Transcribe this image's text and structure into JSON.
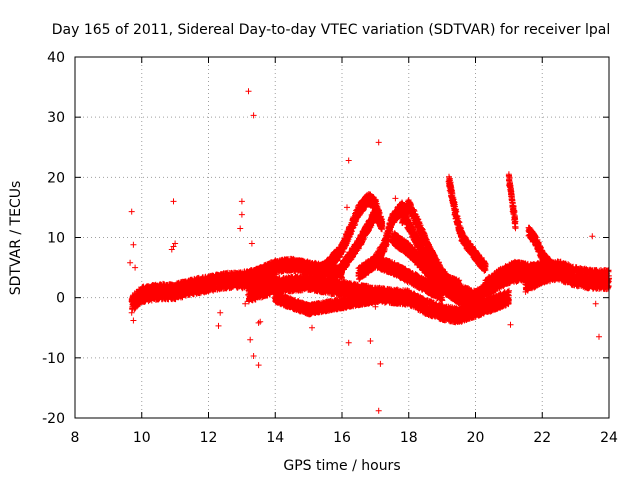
{
  "chart_data": {
    "type": "scatter",
    "title": "Day 165 of 2011, Sidereal Day-to-day VTEC variation (SDTVAR) for receiver lpal",
    "xlabel": "GPS time / hours",
    "ylabel": "SDTVAR / TECUs",
    "xlim": [
      8,
      24
    ],
    "ylim": [
      -20,
      40
    ],
    "xticks": [
      "8",
      "10",
      "12",
      "14",
      "16",
      "18",
      "20",
      "22",
      "24"
    ],
    "yticks": [
      "-20",
      "-10",
      "0",
      "10",
      "20",
      "30",
      "40"
    ],
    "grid": true,
    "marker": "+",
    "color": "#ff0000",
    "legend": "none",
    "bands": [
      {
        "x": [
          9.7,
          10.0,
          10.5,
          11.0,
          11.5,
          12.0,
          12.5,
          13.0,
          13.5,
          14.0
        ],
        "y": [
          -1.0,
          0.5,
          1.0,
          1.0,
          1.8,
          2.3,
          2.8,
          3.0,
          3.5,
          4.0
        ],
        "hw": 1.3
      },
      {
        "x": [
          13.0,
          13.5,
          14.0,
          14.5,
          15.0,
          15.5,
          16.0
        ],
        "y": [
          2.5,
          4.0,
          5.2,
          5.5,
          5.0,
          4.5,
          4.2
        ],
        "hw": 1.0
      },
      {
        "x": [
          13.2,
          14.0,
          15.0,
          16.0,
          17.0,
          18.0,
          18.5,
          19.0,
          19.5,
          20.0,
          20.5,
          21.0
        ],
        "y": [
          0.5,
          2.0,
          2.5,
          1.5,
          0.5,
          0.0,
          -1.5,
          -2.5,
          -3.0,
          -2.0,
          -1.0,
          0.0
        ],
        "hw": 1.2
      },
      {
        "x": [
          14.0,
          15.0,
          16.0,
          16.5,
          17.0
        ],
        "y": [
          0.0,
          -2.0,
          -1.0,
          -0.5,
          0.0
        ],
        "hw": 0.8
      },
      {
        "x": [
          15.2,
          15.5,
          16.0,
          16.3,
          16.5,
          16.8,
          17.0,
          17.2
        ],
        "y": [
          4.0,
          5.0,
          8.0,
          12.0,
          14.5,
          16.5,
          15.5,
          12.0
        ],
        "hw": 0.9
      },
      {
        "x": [
          16.0,
          16.5,
          16.8,
          17.0,
          17.2
        ],
        "y": [
          5.0,
          9.0,
          12.0,
          14.0,
          12.0
        ],
        "hw": 0.8
      },
      {
        "x": [
          17.0,
          17.3,
          17.5,
          17.8,
          18.0,
          18.5,
          19.0,
          19.5
        ],
        "y": [
          6.0,
          9.0,
          13.0,
          15.0,
          12.0,
          7.0,
          3.0,
          2.0
        ],
        "hw": 0.9
      },
      {
        "x": [
          17.5,
          18.0,
          18.5,
          19.0,
          19.5,
          20.0
        ],
        "y": [
          10.0,
          8.0,
          5.0,
          2.0,
          0.0,
          -1.5
        ],
        "hw": 1.0
      },
      {
        "x": [
          17.8,
          18.0,
          18.3,
          18.6,
          19.0,
          19.3
        ],
        "y": [
          13.0,
          15.5,
          12.0,
          8.0,
          4.0,
          2.0
        ],
        "hw": 0.8
      },
      {
        "x": [
          16.5,
          17.0,
          17.5,
          18.0,
          18.5,
          19.0
        ],
        "y": [
          4.0,
          6.0,
          5.0,
          3.5,
          2.0,
          0.5
        ],
        "hw": 1.0
      },
      {
        "x": [
          19.2,
          19.3,
          19.4,
          19.6,
          20.0,
          20.3
        ],
        "y": [
          19.5,
          17.0,
          14.0,
          10.0,
          7.0,
          5.0
        ],
        "hw": 0.8
      },
      {
        "x": [
          19.5,
          20.0,
          20.5,
          21.0,
          21.5
        ],
        "y": [
          1.0,
          0.0,
          2.0,
          3.5,
          4.0
        ],
        "hw": 1.1
      },
      {
        "x": [
          20.3,
          20.8,
          21.2,
          21.7,
          22.0
        ],
        "y": [
          2.0,
          4.0,
          5.0,
          4.5,
          5.0
        ],
        "hw": 1.0
      },
      {
        "x": [
          21.0,
          21.1,
          21.2
        ],
        "y": [
          20.0,
          16.0,
          12.0
        ],
        "hw": 0.7
      },
      {
        "x": [
          21.6,
          21.8,
          22.0,
          22.3
        ],
        "y": [
          11.0,
          9.5,
          7.0,
          5.0
        ],
        "hw": 0.8
      },
      {
        "x": [
          21.5,
          22.0,
          22.5,
          23.0,
          23.5,
          24.0
        ],
        "y": [
          2.5,
          4.0,
          4.5,
          3.5,
          3.0,
          3.0
        ],
        "hw": 1.6
      }
    ],
    "outliers": [
      {
        "x": 9.7,
        "y": 14.3
      },
      {
        "x": 9.75,
        "y": 8.8
      },
      {
        "x": 9.65,
        "y": 5.8
      },
      {
        "x": 9.8,
        "y": 5.0
      },
      {
        "x": 9.75,
        "y": -3.8
      },
      {
        "x": 9.7,
        "y": -2.5
      },
      {
        "x": 10.95,
        "y": 16.0
      },
      {
        "x": 10.95,
        "y": 8.5
      },
      {
        "x": 11.0,
        "y": 9.0
      },
      {
        "x": 10.9,
        "y": 8.0
      },
      {
        "x": 12.35,
        "y": -2.5
      },
      {
        "x": 12.3,
        "y": -4.7
      },
      {
        "x": 12.5,
        "y": 3.0
      },
      {
        "x": 13.0,
        "y": 16.0
      },
      {
        "x": 13.0,
        "y": 13.8
      },
      {
        "x": 12.95,
        "y": 11.5
      },
      {
        "x": 13.2,
        "y": 34.3
      },
      {
        "x": 13.35,
        "y": 30.3
      },
      {
        "x": 13.3,
        "y": 9.0
      },
      {
        "x": 13.1,
        "y": -1.0
      },
      {
        "x": 13.25,
        "y": -7.0
      },
      {
        "x": 13.35,
        "y": -9.7
      },
      {
        "x": 13.5,
        "y": -11.2
      },
      {
        "x": 13.5,
        "y": -4.2
      },
      {
        "x": 13.55,
        "y": -4.0
      },
      {
        "x": 15.1,
        "y": -5.0
      },
      {
        "x": 15.5,
        "y": 5.2
      },
      {
        "x": 16.2,
        "y": 22.8
      },
      {
        "x": 16.15,
        "y": 15.0
      },
      {
        "x": 16.2,
        "y": -7.5
      },
      {
        "x": 16.85,
        "y": -7.2
      },
      {
        "x": 17.0,
        "y": -1.5
      },
      {
        "x": 17.1,
        "y": 25.8
      },
      {
        "x": 17.15,
        "y": -11.0
      },
      {
        "x": 17.1,
        "y": -18.8
      },
      {
        "x": 17.6,
        "y": 16.5
      },
      {
        "x": 21.05,
        "y": -4.5
      },
      {
        "x": 23.5,
        "y": 10.2
      },
      {
        "x": 23.7,
        "y": -6.5
      },
      {
        "x": 23.6,
        "y": -1.0
      }
    ]
  }
}
